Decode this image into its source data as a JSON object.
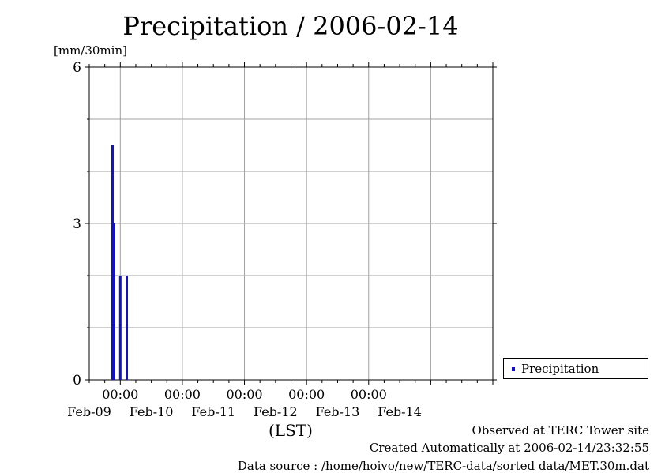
{
  "chart_data": {
    "type": "bar",
    "title": "Precipitation / 2006-02-14",
    "ylabel": "[mm/30min]",
    "xlabel": "(LST)",
    "ylim": [
      0,
      6
    ],
    "yticks": [
      "0",
      "3",
      "6"
    ],
    "xlim": [
      "2006-02-08 12:00",
      "2006-02-14 24:00"
    ],
    "xticks": [
      {
        "time": "00:00",
        "date": "Feb-09"
      },
      {
        "time": "00:00",
        "date": "Feb-10"
      },
      {
        "time": "00:00",
        "date": "Feb-11"
      },
      {
        "time": "00:00",
        "date": "Feb-12"
      },
      {
        "time": "00:00",
        "date": "Feb-13"
      },
      {
        "date": "Feb-14"
      }
    ],
    "grid": true,
    "legend_position": "right",
    "series": [
      {
        "name": "Precipitation",
        "color": "#1010d0",
        "points": [
          {
            "x": "2006-02-08 21:00",
            "y": 4.5
          },
          {
            "x": "2006-02-08 21:30",
            "y": 3.0
          },
          {
            "x": "2006-02-08 24:00",
            "y": 2.0
          },
          {
            "x": "2006-02-09 02:30",
            "y": 2.0
          }
        ]
      }
    ]
  },
  "footer": {
    "line1": "Observed at TERC Tower site",
    "line2": "Created Automatically at 2006-02-14/23:32:55",
    "line3": "Data source : /home/hoivo/new/TERC-data/sorted  data/MET.30m.dat"
  }
}
